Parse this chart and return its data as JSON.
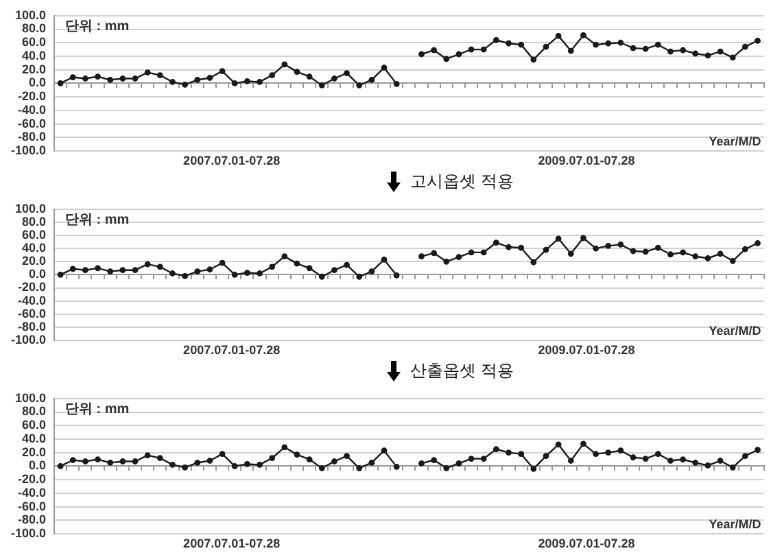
{
  "chart_data": [
    {
      "type": "line",
      "categories": [
        null,
        null,
        null,
        null,
        null,
        null,
        null,
        null,
        null,
        null,
        null,
        null,
        null,
        null,
        null,
        null,
        null,
        null,
        null,
        null,
        null,
        null,
        null,
        null,
        null,
        null,
        null,
        null,
        null,
        null,
        null,
        null,
        null,
        null,
        null,
        null,
        null,
        null,
        null,
        null,
        null,
        null,
        null,
        null,
        null,
        null,
        null,
        null,
        null,
        null,
        null,
        null,
        null,
        null,
        null,
        null,
        null
      ],
      "series": [
        {
          "color": "#1a1a1a",
          "values": [
            0,
            9,
            7,
            10,
            5,
            7,
            7,
            16,
            12,
            2,
            -2,
            5,
            8,
            18,
            0,
            3,
            2,
            12,
            28,
            17,
            10,
            -3,
            7,
            15,
            -3,
            5,
            23,
            -1,
            null,
            43,
            49,
            36,
            43,
            50,
            50,
            64,
            59,
            57,
            35,
            54,
            70,
            48,
            71,
            57,
            59,
            60,
            52,
            51,
            57,
            47,
            49,
            44,
            41,
            47,
            38,
            54,
            63
          ]
        }
      ],
      "ylim": [
        -100,
        100
      ],
      "yticks": [
        {
          "value": -100,
          "label": "-100.0"
        },
        {
          "value": -80,
          "label": "-80.0"
        },
        {
          "value": -60,
          "label": "-60.0"
        },
        {
          "value": -40,
          "label": "-40.0"
        },
        {
          "value": -20,
          "label": "-20.0"
        },
        {
          "value": 0,
          "label": "0.0"
        },
        {
          "value": 20,
          "label": "20.0"
        },
        {
          "value": 40,
          "label": "40.0"
        },
        {
          "value": 60,
          "label": "60.0"
        },
        {
          "value": 80,
          "label": "80.0"
        },
        {
          "value": 100,
          "label": "100.0"
        }
      ],
      "grid": "y",
      "marker": "circle",
      "xlabel": "Year/M/D",
      "annotations": [
        "단위 : mm",
        "2007.07.01-07.28",
        "2009.07.01-07.28"
      ]
    },
    {
      "type": "line",
      "title": "고시옵셋 적용",
      "categories": [
        null,
        null,
        null,
        null,
        null,
        null,
        null,
        null,
        null,
        null,
        null,
        null,
        null,
        null,
        null,
        null,
        null,
        null,
        null,
        null,
        null,
        null,
        null,
        null,
        null,
        null,
        null,
        null,
        null,
        null,
        null,
        null,
        null,
        null,
        null,
        null,
        null,
        null,
        null,
        null,
        null,
        null,
        null,
        null,
        null,
        null,
        null,
        null,
        null,
        null,
        null,
        null,
        null,
        null,
        null,
        null,
        null
      ],
      "series": [
        {
          "color": "#1a1a1a",
          "values": [
            0,
            9,
            7,
            10,
            5,
            7,
            7,
            16,
            12,
            2,
            -2,
            5,
            8,
            18,
            0,
            3,
            2,
            12,
            28,
            17,
            10,
            -3,
            7,
            15,
            -3,
            5,
            23,
            -1,
            null,
            28,
            33,
            20,
            27,
            34,
            34,
            49,
            42,
            41,
            19,
            38,
            55,
            32,
            56,
            40,
            44,
            46,
            36,
            35,
            41,
            31,
            34,
            28,
            25,
            32,
            21,
            39,
            48
          ]
        }
      ],
      "ylim": [
        -100,
        100
      ],
      "yticks": [
        {
          "value": -100,
          "label": "-100.0"
        },
        {
          "value": -80,
          "label": "-80.0"
        },
        {
          "value": -60,
          "label": "-60.0"
        },
        {
          "value": -40,
          "label": "-40.0"
        },
        {
          "value": -20,
          "label": "-20.0"
        },
        {
          "value": 0,
          "label": "0.0"
        },
        {
          "value": 20,
          "label": "20.0"
        },
        {
          "value": 40,
          "label": "40.0"
        },
        {
          "value": 60,
          "label": "60.0"
        },
        {
          "value": 80,
          "label": "80.0"
        },
        {
          "value": 100,
          "label": "100.0"
        }
      ],
      "grid": "y",
      "marker": "circle",
      "xlabel": "Year/M/D",
      "annotations": [
        "단위 : mm",
        "2007.07.01-07.28",
        "2009.07.01-07.28"
      ]
    },
    {
      "type": "line",
      "title": "산출옵셋 적용",
      "categories": [
        null,
        null,
        null,
        null,
        null,
        null,
        null,
        null,
        null,
        null,
        null,
        null,
        null,
        null,
        null,
        null,
        null,
        null,
        null,
        null,
        null,
        null,
        null,
        null,
        null,
        null,
        null,
        null,
        null,
        null,
        null,
        null,
        null,
        null,
        null,
        null,
        null,
        null,
        null,
        null,
        null,
        null,
        null,
        null,
        null,
        null,
        null,
        null,
        null,
        null,
        null,
        null,
        null,
        null,
        null,
        null,
        null
      ],
      "series": [
        {
          "color": "#1a1a1a",
          "values": [
            0,
            9,
            7,
            10,
            5,
            7,
            7,
            16,
            12,
            2,
            -2,
            5,
            8,
            18,
            0,
            3,
            2,
            12,
            28,
            17,
            10,
            -3,
            7,
            15,
            -3,
            5,
            23,
            -1,
            null,
            4,
            9,
            -3,
            4,
            11,
            11,
            25,
            20,
            18,
            -4,
            15,
            32,
            8,
            33,
            18,
            20,
            23,
            13,
            11,
            18,
            8,
            10,
            5,
            1,
            8,
            -2,
            15,
            24
          ]
        }
      ],
      "ylim": [
        -100,
        100
      ],
      "yticks": [
        {
          "value": -100,
          "label": "-100.0"
        },
        {
          "value": -80,
          "label": "-80.0"
        },
        {
          "value": -60,
          "label": "-60.0"
        },
        {
          "value": -40,
          "label": "-40.0"
        },
        {
          "value": -20,
          "label": "-20.0"
        },
        {
          "value": 0,
          "label": "0.0"
        },
        {
          "value": 20,
          "label": "20.0"
        },
        {
          "value": 40,
          "label": "40.0"
        },
        {
          "value": 60,
          "label": "60.0"
        },
        {
          "value": 80,
          "label": "80.0"
        },
        {
          "value": 100,
          "label": "100.0"
        }
      ],
      "grid": "y",
      "marker": "circle",
      "xlabel": "Year/M/D",
      "annotations": [
        "단위 : mm",
        "2007.07.01-07.28",
        "2009.07.01-07.28"
      ]
    }
  ]
}
